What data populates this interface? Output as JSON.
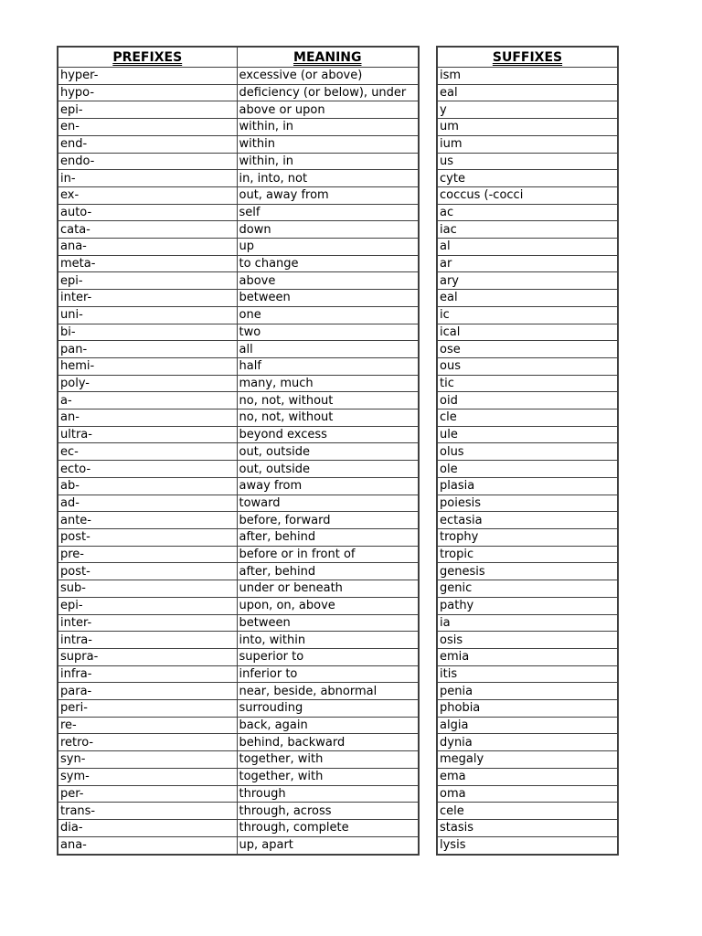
{
  "page": {
    "background": "#ffffff",
    "text_color": "#000000",
    "border_color": "#3f3f3f"
  },
  "prefix_table": {
    "headers": [
      "PREFIXES",
      "MEANING"
    ],
    "rows": [
      [
        "hyper-",
        "excessive (or above)"
      ],
      [
        "hypo-",
        "deficiency (or below), under"
      ],
      [
        "epi-",
        "above or upon"
      ],
      [
        "en-",
        "within, in"
      ],
      [
        "end-",
        "within"
      ],
      [
        "endo-",
        "within, in"
      ],
      [
        "in-",
        "in, into, not"
      ],
      [
        "ex-",
        "out, away from"
      ],
      [
        "auto-",
        "self"
      ],
      [
        "cata-",
        "down"
      ],
      [
        "ana-",
        "up"
      ],
      [
        "meta-",
        "to change"
      ],
      [
        "epi-",
        "above"
      ],
      [
        "inter-",
        "between"
      ],
      [
        "uni-",
        "one"
      ],
      [
        "bi-",
        "two"
      ],
      [
        "pan-",
        "all"
      ],
      [
        "hemi-",
        "half"
      ],
      [
        "poly-",
        "many, much"
      ],
      [
        "a-",
        "no, not, without"
      ],
      [
        "an-",
        "no, not, without"
      ],
      [
        "ultra-",
        "beyond excess"
      ],
      [
        "ec-",
        "out, outside"
      ],
      [
        "ecto-",
        "out, outside"
      ],
      [
        "ab-",
        "away from"
      ],
      [
        "ad-",
        "toward"
      ],
      [
        "ante-",
        "before, forward"
      ],
      [
        "post-",
        "after, behind"
      ],
      [
        "pre-",
        "before or in front of"
      ],
      [
        "post-",
        "after, behind"
      ],
      [
        "sub-",
        "under or beneath"
      ],
      [
        "epi-",
        "upon, on, above"
      ],
      [
        "inter-",
        "between"
      ],
      [
        "intra-",
        "into, within"
      ],
      [
        "supra-",
        "superior to"
      ],
      [
        "infra-",
        "inferior to"
      ],
      [
        "para-",
        "near, beside, abnormal"
      ],
      [
        "peri-",
        "surrouding"
      ],
      [
        "re-",
        "back, again"
      ],
      [
        "retro-",
        "behind, backward"
      ],
      [
        "syn-",
        "together, with"
      ],
      [
        "sym-",
        "together, with"
      ],
      [
        "per-",
        "through"
      ],
      [
        "trans-",
        "through, across"
      ],
      [
        "dia-",
        "through, complete"
      ],
      [
        "ana-",
        "up, apart"
      ]
    ]
  },
  "suffix_table": {
    "headers": [
      "SUFFIXES"
    ],
    "rows": [
      "ism",
      "eal",
      "y",
      "um",
      "ium",
      "us",
      "cyte",
      "coccus (-cocci",
      "ac",
      "iac",
      "al",
      "ar",
      "ary",
      "eal",
      "ic",
      "ical",
      "ose",
      "ous",
      "tic",
      "oid",
      "cle",
      "ule",
      "olus",
      "ole",
      "plasia",
      "poiesis",
      "ectasia",
      "trophy",
      "tropic",
      "genesis",
      "genic",
      "pathy",
      "ia",
      "osis",
      "emia",
      "itis",
      "penia",
      "phobia",
      "algia",
      "dynia",
      "megaly",
      "ema",
      "oma",
      "cele",
      "stasis",
      "lysis"
    ]
  }
}
